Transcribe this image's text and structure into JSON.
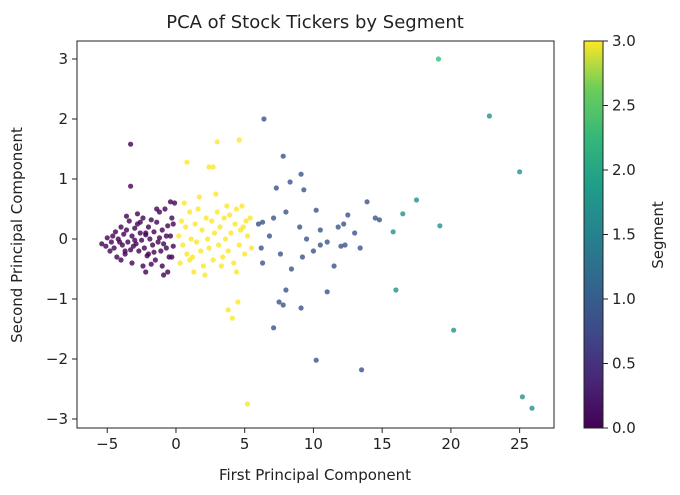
{
  "chart_data": {
    "type": "scatter",
    "title": "PCA of Stock Tickers by Segment",
    "xlabel": "First Principal Component",
    "ylabel": "Second Principal Component",
    "xlim": [
      -7.2,
      27.5
    ],
    "ylim": [
      -3.15,
      3.3
    ],
    "xticks": [
      -5,
      0,
      5,
      10,
      15,
      20,
      25
    ],
    "yticks": [
      -3,
      -2,
      -1,
      0,
      1,
      2,
      3
    ],
    "grid": false,
    "colorbar": {
      "label": "Segment",
      "min": 0.0,
      "max": 3.0,
      "ticks": [
        "0.0",
        "0.5",
        "1.0",
        "1.5",
        "2.0",
        "2.5",
        "3.0"
      ],
      "colormap": "viridis"
    },
    "series": [
      {
        "segment": 0,
        "color": "#440154",
        "points": [
          [
            -5.4,
            -0.08
          ],
          [
            -5.1,
            -0.12
          ],
          [
            -5.0,
            0.02
          ],
          [
            -4.8,
            -0.2
          ],
          [
            -4.6,
            0.05
          ],
          [
            -4.5,
            -0.15
          ],
          [
            -4.4,
            0.12
          ],
          [
            -4.3,
            -0.3
          ],
          [
            -4.2,
            0.0
          ],
          [
            -4.1,
            -0.05
          ],
          [
            -4.0,
            0.2
          ],
          [
            -3.9,
            -0.1
          ],
          [
            -3.8,
            0.08
          ],
          [
            -3.7,
            -0.25
          ],
          [
            -3.6,
            0.15
          ],
          [
            -3.5,
            -0.05
          ],
          [
            -3.4,
            0.3
          ],
          [
            -3.3,
            -0.18
          ],
          [
            -3.2,
            0.05
          ],
          [
            -3.1,
            -0.12
          ],
          [
            -3.0,
            0.18
          ],
          [
            -2.9,
            -0.08
          ],
          [
            -2.8,
            0.25
          ],
          [
            -2.7,
            -0.2
          ],
          [
            -2.6,
            0.1
          ],
          [
            -2.5,
            -0.02
          ],
          [
            -2.4,
            0.35
          ],
          [
            -2.3,
            -0.15
          ],
          [
            -2.2,
            0.07
          ],
          [
            -2.1,
            -0.28
          ],
          [
            -2.0,
            0.2
          ],
          [
            -1.9,
            0.0
          ],
          [
            -1.8,
            0.32
          ],
          [
            -1.7,
            -0.1
          ],
          [
            -1.6,
            0.12
          ],
          [
            -1.5,
            -0.35
          ],
          [
            -1.4,
            0.28
          ],
          [
            -1.3,
            -0.05
          ],
          [
            -1.2,
            0.45
          ],
          [
            -1.1,
            -0.2
          ],
          [
            -1.0,
            0.15
          ],
          [
            -0.9,
            -0.08
          ],
          [
            -0.8,
            0.5
          ],
          [
            -0.7,
            -0.15
          ],
          [
            -0.6,
            0.22
          ],
          [
            -0.5,
            -0.3
          ],
          [
            -0.4,
            0.05
          ],
          [
            -0.3,
            0.35
          ],
          [
            -0.2,
            -0.12
          ],
          [
            -0.1,
            0.6
          ],
          [
            -0.4,
            0.62
          ],
          [
            -1.4,
            0.5
          ],
          [
            -2.8,
            0.42
          ],
          [
            -3.6,
            0.38
          ],
          [
            -4.0,
            -0.35
          ],
          [
            -3.2,
            -0.4
          ],
          [
            -2.4,
            -0.45
          ],
          [
            -1.8,
            -0.42
          ],
          [
            -1.0,
            -0.45
          ],
          [
            -0.6,
            -0.55
          ],
          [
            -2.2,
            -0.55
          ],
          [
            -0.9,
            -0.6
          ],
          [
            -3.3,
            1.58
          ],
          [
            -3.3,
            0.88
          ],
          [
            -3.7,
            -0.2
          ],
          [
            -3.0,
            -0.02
          ],
          [
            -2.6,
            0.28
          ],
          [
            -1.6,
            -0.22
          ],
          [
            -0.7,
            0.05
          ],
          [
            -0.2,
            0.25
          ],
          [
            -4.7,
            -0.05
          ],
          [
            -2.2,
            0.1
          ],
          [
            -2.0,
            -0.25
          ],
          [
            -1.2,
            0.02
          ],
          [
            -0.3,
            -0.3
          ]
        ]
      },
      {
        "segment": 1,
        "color": "#3b528b",
        "points": [
          [
            6.4,
            2.0
          ],
          [
            7.8,
            1.38
          ],
          [
            8.3,
            0.95
          ],
          [
            9.1,
            1.08
          ],
          [
            7.3,
            0.85
          ],
          [
            9.3,
            0.82
          ],
          [
            13.9,
            0.62
          ],
          [
            10.2,
            0.48
          ],
          [
            12.5,
            0.4
          ],
          [
            14.5,
            0.35
          ],
          [
            6.0,
            0.25
          ],
          [
            6.3,
            0.28
          ],
          [
            7.1,
            0.35
          ],
          [
            8.0,
            0.45
          ],
          [
            9.0,
            0.2
          ],
          [
            10.5,
            0.15
          ],
          [
            11.8,
            0.2
          ],
          [
            12.2,
            0.25
          ],
          [
            13.0,
            0.1
          ],
          [
            14.8,
            0.32
          ],
          [
            6.8,
            0.05
          ],
          [
            9.5,
            0.0
          ],
          [
            11.0,
            -0.05
          ],
          [
            12.3,
            -0.1
          ],
          [
            13.4,
            -0.15
          ],
          [
            6.2,
            -0.15
          ],
          [
            7.6,
            -0.25
          ],
          [
            9.2,
            -0.3
          ],
          [
            10.5,
            -0.1
          ],
          [
            12.0,
            -0.12
          ],
          [
            6.3,
            -0.4
          ],
          [
            8.4,
            -0.5
          ],
          [
            8.0,
            -0.85
          ],
          [
            7.5,
            -1.05
          ],
          [
            7.8,
            -1.1
          ],
          [
            11.0,
            -0.88
          ],
          [
            9.1,
            -1.15
          ],
          [
            7.1,
            -1.48
          ],
          [
            10.2,
            -2.02
          ],
          [
            13.5,
            -2.18
          ],
          [
            10.0,
            -0.2
          ],
          [
            11.5,
            -0.45
          ]
        ]
      },
      {
        "segment": 2,
        "color": "#21918c",
        "points": [
          [
            25.0,
            1.12
          ],
          [
            22.8,
            2.05
          ],
          [
            19.2,
            0.22
          ],
          [
            17.5,
            0.65
          ],
          [
            16.5,
            0.42
          ],
          [
            15.8,
            0.12
          ],
          [
            16.0,
            -0.85
          ],
          [
            20.2,
            -1.52
          ],
          [
            25.2,
            -2.63
          ],
          [
            25.9,
            -2.82
          ]
        ]
      },
      {
        "segment": 3,
        "color": "#2ec27e",
        "points": [
          [
            19.1,
            3.0
          ]
        ]
      },
      {
        "segment": 4,
        "color": "#fde725",
        "points": [
          [
            0.2,
            0.05
          ],
          [
            0.4,
            0.3
          ],
          [
            0.5,
            -0.1
          ],
          [
            0.7,
            0.2
          ],
          [
            0.8,
            -0.25
          ],
          [
            1.0,
            0.45
          ],
          [
            1.1,
            0.0
          ],
          [
            1.2,
            -0.3
          ],
          [
            1.4,
            0.25
          ],
          [
            1.5,
            -0.05
          ],
          [
            1.6,
            0.5
          ],
          [
            1.8,
            -0.2
          ],
          [
            1.9,
            0.15
          ],
          [
            2.0,
            -0.45
          ],
          [
            2.2,
            0.35
          ],
          [
            2.3,
            0.0
          ],
          [
            2.4,
            -0.15
          ],
          [
            2.6,
            0.3
          ],
          [
            2.7,
            -0.35
          ],
          [
            2.8,
            0.1
          ],
          [
            3.0,
            0.45
          ],
          [
            3.1,
            -0.1
          ],
          [
            3.2,
            0.2
          ],
          [
            3.4,
            -0.3
          ],
          [
            3.5,
            0.35
          ],
          [
            3.6,
            0.0
          ],
          [
            3.8,
            -0.2
          ],
          [
            3.9,
            0.4
          ],
          [
            4.0,
            0.1
          ],
          [
            4.2,
            -0.4
          ],
          [
            4.3,
            0.25
          ],
          [
            4.4,
            0.5
          ],
          [
            4.6,
            -0.1
          ],
          [
            4.7,
            0.15
          ],
          [
            4.8,
            0.55
          ],
          [
            5.0,
            -0.25
          ],
          [
            5.1,
            0.3
          ],
          [
            5.2,
            0.05
          ],
          [
            5.4,
            0.35
          ],
          [
            5.5,
            -0.15
          ],
          [
            0.8,
            1.28
          ],
          [
            2.4,
            1.2
          ],
          [
            2.7,
            1.2
          ],
          [
            3.0,
            1.62
          ],
          [
            4.6,
            1.65
          ],
          [
            0.3,
            -0.4
          ],
          [
            1.3,
            -0.55
          ],
          [
            2.1,
            -0.6
          ],
          [
            3.3,
            -0.45
          ],
          [
            4.4,
            -0.55
          ],
          [
            3.8,
            -1.18
          ],
          [
            4.1,
            -1.32
          ],
          [
            4.5,
            -1.05
          ],
          [
            5.2,
            -2.75
          ],
          [
            0.6,
            0.6
          ],
          [
            1.7,
            0.7
          ],
          [
            3.7,
            0.55
          ],
          [
            4.9,
            0.2
          ],
          [
            2.9,
            0.75
          ],
          [
            1.0,
            -0.35
          ]
        ]
      }
    ]
  }
}
